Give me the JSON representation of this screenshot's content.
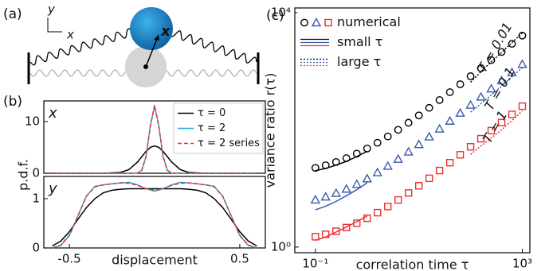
{
  "a": {
    "tag": "(a)",
    "axis_y": "y",
    "axis_x": "x",
    "bead_label": "x"
  },
  "chart_data": [
    {
      "type": "line",
      "tag": "(b)",
      "label": "x",
      "ylabel": "p.d.f.",
      "legend": "upper right",
      "x": [
        -0.6,
        -0.3,
        -0.2,
        -0.15,
        -0.1,
        -0.075,
        -0.05,
        -0.025,
        0,
        0.025,
        0.05,
        0.075,
        0.1,
        0.15,
        0.2,
        0.3,
        0.6
      ],
      "xlim": [
        -0.65,
        0.65
      ],
      "ylim": [
        0,
        14
      ],
      "yticks": [
        0,
        10
      ],
      "series": [
        {
          "name": "τ = 0",
          "color": "#000000",
          "style": "solid",
          "values": [
            0,
            0,
            0.15,
            0.72,
            2.18,
            3.21,
            4.25,
            5.01,
            5.3,
            5.01,
            4.25,
            3.21,
            2.18,
            0.72,
            0.15,
            0,
            0
          ]
        },
        {
          "name": "τ = 2",
          "color": "#1fa9e0",
          "style": "solid",
          "values": [
            0,
            0,
            0,
            0,
            0.05,
            0.57,
            3.2,
            9.2,
            13,
            9.2,
            3.2,
            0.57,
            0.05,
            0,
            0,
            0,
            0
          ]
        },
        {
          "name": "τ = 2 series",
          "color": "#e8312f",
          "style": "dashed",
          "values": [
            0,
            0,
            0,
            0,
            0.05,
            0.6,
            3.3,
            9.1,
            13.2,
            9.1,
            3.3,
            0.6,
            0.05,
            0,
            0,
            0,
            0
          ]
        }
      ]
    },
    {
      "type": "line",
      "label": "y",
      "xlabel": "displacement",
      "x": [
        -0.6,
        -0.55,
        -0.5,
        -0.45,
        -0.4,
        -0.35,
        -0.3,
        -0.25,
        -0.2,
        -0.15,
        -0.1,
        -0.05,
        0,
        0.05,
        0.1,
        0.15,
        0.2,
        0.25,
        0.3,
        0.35,
        0.4,
        0.45,
        0.5,
        0.55,
        0.6
      ],
      "xlim": [
        -0.65,
        0.65
      ],
      "xticks": [
        -0.5,
        0.5
      ],
      "ylim": [
        0,
        1.45
      ],
      "yticks": [
        0,
        1
      ],
      "series": [
        {
          "color": "#000000",
          "style": "solid",
          "values": [
            0.04,
            0.14,
            0.33,
            0.58,
            0.82,
            1.0,
            1.12,
            1.17,
            1.19,
            1.2,
            1.2,
            1.2,
            1.2,
            1.2,
            1.2,
            1.2,
            1.19,
            1.17,
            1.12,
            1.0,
            0.82,
            0.58,
            0.33,
            0.14,
            0.04
          ]
        },
        {
          "color": "#1fa9e0",
          "style": "solid",
          "values": [
            0,
            0.05,
            0.25,
            0.65,
            1.05,
            1.25,
            1.28,
            1.3,
            1.32,
            1.33,
            1.28,
            1.2,
            1.15,
            1.2,
            1.28,
            1.33,
            1.32,
            1.3,
            1.28,
            1.25,
            1.05,
            0.65,
            0.25,
            0.05,
            0
          ]
        },
        {
          "color": "#e8312f",
          "style": "dashed",
          "values": [
            0,
            0.06,
            0.26,
            0.65,
            1.05,
            1.24,
            1.28,
            1.3,
            1.32,
            1.31,
            1.27,
            1.2,
            1.17,
            1.2,
            1.27,
            1.31,
            1.32,
            1.3,
            1.28,
            1.24,
            1.05,
            0.65,
            0.26,
            0.06,
            0
          ]
        }
      ]
    },
    {
      "type": "scatter",
      "tag": "(c)",
      "xlabel": "correlation time τ",
      "ylabel": "variance ratio r(τ)",
      "legend": "upper left",
      "xscale": "log",
      "yscale": "log",
      "xlim": [
        0.04,
        1400
      ],
      "ylim": [
        0.8,
        12000
      ],
      "xticks": [
        {
          "value": 0.1,
          "label": "10⁻¹"
        },
        {
          "value": 1000,
          "label": "10³"
        }
      ],
      "yticks": [
        {
          "value": 1,
          "label": "10⁰"
        },
        {
          "value": 10000,
          "label": "10⁴"
        }
      ],
      "series": [
        {
          "name": "numerical",
          "style": "markers",
          "x": [
            0.1,
            0.158,
            0.251,
            0.398,
            0.631,
            1,
            1.585,
            2.512,
            3.981,
            6.31,
            10,
            15.85,
            25.12,
            39.81,
            63.1,
            100,
            158.5,
            251.2,
            398.1,
            631,
            1000
          ],
          "curves": [
            {
              "color": "#000000",
              "marker": "circle",
              "values": [
                22.4,
                24.8,
                28.2,
                32.8,
                39.2,
                48,
                60.2,
                77,
                100,
                132,
                176,
                237,
                322,
                438,
                598,
                820,
                1125,
                1548,
                2130,
                2934,
                4045
              ]
            },
            {
              "color": "#3a5bab",
              "marker": "triangle",
              "values": [
                6.4,
                7.2,
                8.3,
                9.8,
                11.8,
                14.7,
                18.7,
                24.1,
                31.7,
                42.1,
                56.4,
                76.2,
                103.6,
                141.4,
                193.6,
                265.5,
                364.9,
                502,
                691.4,
                952.8,
                1314
              ]
            },
            {
              "color": "#e8312f",
              "marker": "square",
              "values": [
                1.5,
                1.65,
                1.86,
                2.15,
                2.55,
                3.1,
                3.86,
                4.91,
                6.36,
                8.36,
                11.1,
                14.9,
                20.2,
                27.5,
                37.5,
                51.3,
                70.4,
                96.8,
                133.2,
                183.5,
                252.9
              ]
            }
          ]
        },
        {
          "name": "small τ",
          "style": "solid",
          "x": [
            0.1,
            0.16,
            0.25,
            0.4,
            0.63,
            1
          ],
          "curves": [
            {
              "color": "#000000",
              "values": [
                20,
                22,
                25,
                29,
                35,
                43
              ]
            },
            {
              "color": "#3a5bab",
              "values": [
                4.3,
                5,
                6,
                7.5,
                9.5,
                12.5
              ]
            },
            {
              "color": "#e8312f",
              "values": [
                1.3,
                1.5,
                1.8,
                2.2,
                2.7,
                3.4
              ]
            }
          ]
        },
        {
          "name": "large τ",
          "style": "dotted",
          "x": [
            100,
            200,
            400,
            1000
          ],
          "curves": [
            {
              "color": "#000000",
              "values": [
                650,
                1200,
                2100,
                4500
              ]
            },
            {
              "color": "#3a5bab",
              "values": [
                200,
                330,
                560,
                1150
              ]
            },
            {
              "color": "#e8312f",
              "values": [
                38,
                62,
                100,
                210
              ]
            }
          ]
        }
      ],
      "annotations": [
        "T = 0.01",
        "T = 0.1",
        "T = 1"
      ]
    }
  ]
}
